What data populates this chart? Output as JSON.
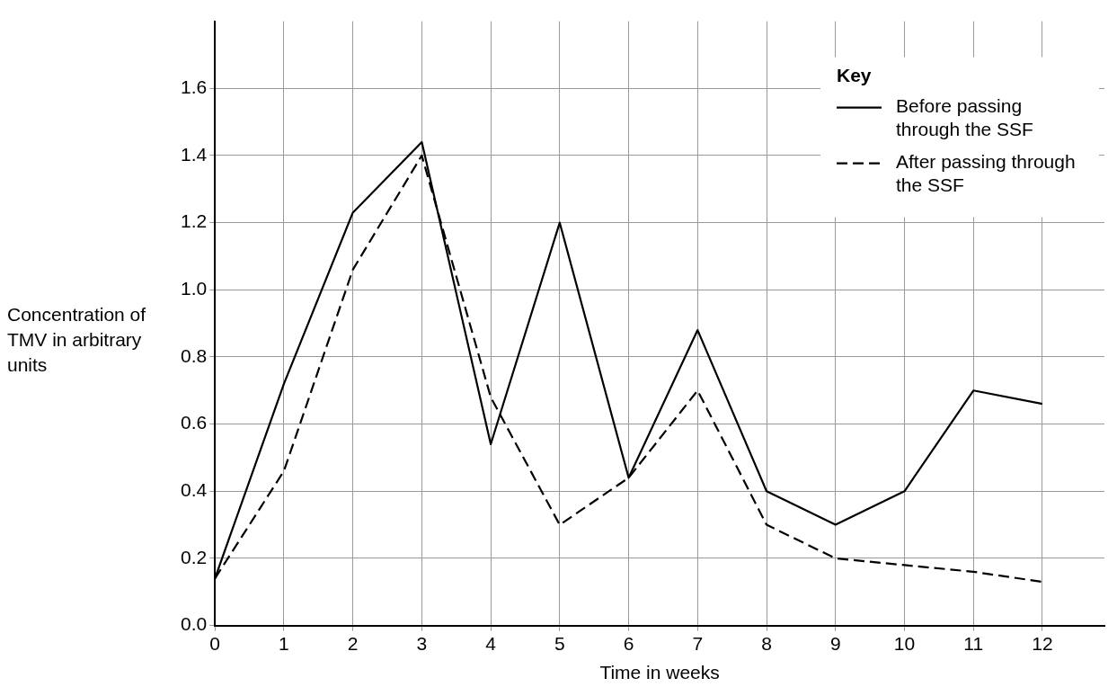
{
  "chart_data": {
    "type": "line",
    "xlabel": "Time in weeks",
    "ylabel": "Concentration of TMV in arbitrary units",
    "legend_title": "Key",
    "x": [
      0,
      1,
      2,
      3,
      4,
      5,
      6,
      7,
      8,
      9,
      10,
      11,
      12
    ],
    "series": [
      {
        "name": "Before passing through the SSF",
        "color": "#000000",
        "line_style": "solid",
        "values": [
          0.14,
          0.72,
          1.23,
          1.44,
          0.54,
          1.2,
          0.44,
          0.88,
          0.4,
          0.3,
          0.4,
          0.7,
          0.66
        ]
      },
      {
        "name": "After passing through the SSF",
        "color": "#000000",
        "line_style": "dashed",
        "values": [
          0.14,
          0.46,
          1.06,
          1.4,
          0.68,
          0.3,
          0.44,
          0.7,
          0.3,
          0.2,
          0.18,
          0.16,
          0.13
        ]
      }
    ],
    "xlim": [
      0,
      12.9
    ],
    "xticks": [
      0,
      1,
      2,
      3,
      4,
      5,
      6,
      7,
      8,
      9,
      10,
      11,
      12
    ],
    "ylim": [
      0,
      1.8
    ],
    "yticks": [
      "0.0",
      0.2,
      0.4,
      0.6,
      0.8,
      "1.0",
      1.2,
      1.4,
      1.6
    ],
    "grid": true,
    "legend": "top right",
    "marker": "none"
  }
}
